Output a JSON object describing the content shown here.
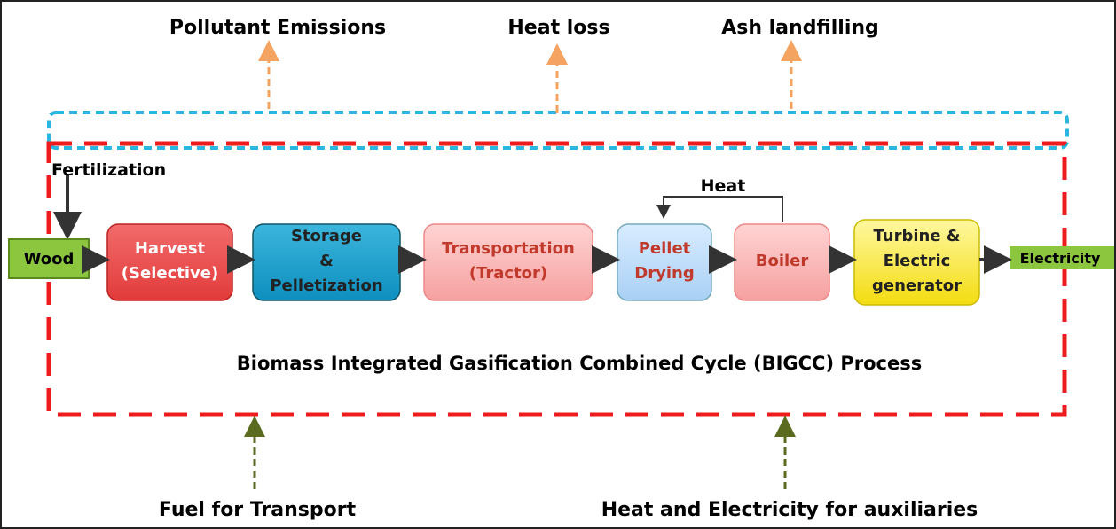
{
  "outputs": [
    "Pollutant Emissions",
    "Heat loss",
    "Ash landfilling"
  ],
  "inputs": [
    "Fuel for Transport",
    "Heat and Electricity for auxiliaries"
  ],
  "fertilization": "Fertilization",
  "heat": "Heat",
  "input_node": "Wood",
  "output_node": "Electricity",
  "process_title": "Biomass Integrated Gasification Combined Cycle (BIGCC) Process",
  "nodes": [
    {
      "lines": [
        "Harvest",
        "(Selective)"
      ]
    },
    {
      "lines": [
        "Storage",
        "&",
        "Pelletization"
      ]
    },
    {
      "lines": [
        "Transportation",
        "(Tractor)"
      ]
    },
    {
      "lines": [
        "Pellet",
        "Drying"
      ]
    },
    {
      "lines": [
        "Boiler"
      ]
    },
    {
      "lines": [
        "Turbine &",
        "Electric",
        "generator"
      ]
    }
  ]
}
